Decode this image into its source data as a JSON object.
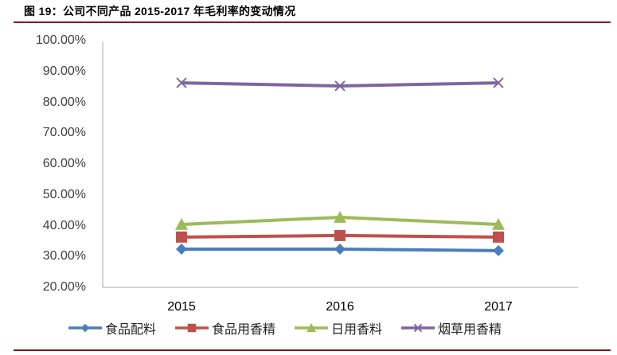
{
  "title": "图 19：公司不同产品 2015-2017 年毛利率的变动情况",
  "chart_data": {
    "type": "line",
    "title": "图 19：公司不同产品 2015-2017 年毛利率的变动情况",
    "xlabel": "",
    "ylabel": "",
    "categories": [
      "2015",
      "2016",
      "2017"
    ],
    "ylim": [
      0.2,
      1.0
    ],
    "yticks": [
      "100.00%",
      "90.00%",
      "80.00%",
      "70.00%",
      "60.00%",
      "50.00%",
      "40.00%",
      "30.00%",
      "20.00%"
    ],
    "grid": false,
    "legend_position": "bottom",
    "series": [
      {
        "name": "食品配料",
        "values": [
          0.324,
          0.324,
          0.319
        ],
        "color": "#4a7ebb",
        "marker": "diamond"
      },
      {
        "name": "食品用香精",
        "values": [
          0.363,
          0.368,
          0.363
        ],
        "color": "#c0504d",
        "marker": "square"
      },
      {
        "name": "日用香料",
        "values": [
          0.404,
          0.427,
          0.404
        ],
        "color": "#9bbb59",
        "marker": "triangle"
      },
      {
        "name": "烟草用香精",
        "values": [
          0.863,
          0.853,
          0.863
        ],
        "color": "#8064a2",
        "marker": "x"
      }
    ]
  }
}
